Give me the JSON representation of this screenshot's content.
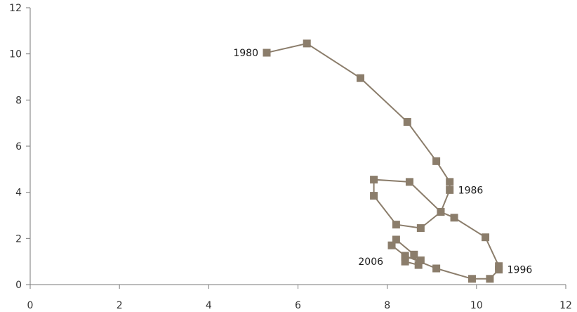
{
  "chart_data": {
    "type": "scatter",
    "title": "",
    "xlabel": "",
    "ylabel": "",
    "xlim": [
      0,
      12
    ],
    "ylim": [
      0,
      12
    ],
    "x_ticks": [
      0,
      2,
      4,
      6,
      8,
      10,
      12
    ],
    "y_ticks": [
      0,
      2,
      4,
      6,
      8,
      10,
      12
    ],
    "x_tick_labels": [
      "0",
      "2",
      "4",
      "6",
      "8",
      "10",
      "12"
    ],
    "y_tick_labels": [
      "0",
      "2",
      "4",
      "6",
      "8",
      "10",
      "12"
    ],
    "grid": false,
    "legend": "none",
    "series": [
      {
        "color": "#8b7d6b",
        "marker": "square",
        "connected": true,
        "points": [
          {
            "x": 5.3,
            "y": 10.05
          },
          {
            "x": 6.2,
            "y": 10.45
          },
          {
            "x": 7.4,
            "y": 8.95
          },
          {
            "x": 8.45,
            "y": 7.05
          },
          {
            "x": 9.1,
            "y": 5.35
          },
          {
            "x": 9.4,
            "y": 4.45
          },
          {
            "x": 9.4,
            "y": 4.1
          },
          {
            "x": 9.2,
            "y": 3.15
          },
          {
            "x": 8.5,
            "y": 4.45
          },
          {
            "x": 7.7,
            "y": 4.55
          },
          {
            "x": 7.7,
            "y": 3.85
          },
          {
            "x": 8.2,
            "y": 2.6
          },
          {
            "x": 8.75,
            "y": 2.45
          },
          {
            "x": 9.2,
            "y": 3.15
          },
          {
            "x": 9.5,
            "y": 2.9
          },
          {
            "x": 10.2,
            "y": 2.05
          },
          {
            "x": 10.5,
            "y": 0.8
          },
          {
            "x": 10.5,
            "y": 0.65
          },
          {
            "x": 10.3,
            "y": 0.25
          },
          {
            "x": 9.9,
            "y": 0.25
          },
          {
            "x": 9.1,
            "y": 0.7
          },
          {
            "x": 8.4,
            "y": 1.25
          },
          {
            "x": 8.1,
            "y": 1.7
          },
          {
            "x": 8.2,
            "y": 1.95
          },
          {
            "x": 8.6,
            "y": 1.3
          },
          {
            "x": 8.7,
            "y": 0.85
          },
          {
            "x": 8.4,
            "y": 1.0
          },
          {
            "x": 8.4,
            "y": 1.2
          },
          {
            "x": 8.75,
            "y": 1.05
          }
        ]
      }
    ],
    "annotations": [
      {
        "text": "1980",
        "x": 5.3,
        "y": 10.05,
        "position": "left"
      },
      {
        "text": "1986",
        "x": 9.4,
        "y": 4.1,
        "position": "right"
      },
      {
        "text": "1996",
        "x": 10.5,
        "y": 0.65,
        "position": "right"
      },
      {
        "text": "2006",
        "x": 8.1,
        "y": 1.0,
        "position": "left"
      }
    ]
  }
}
